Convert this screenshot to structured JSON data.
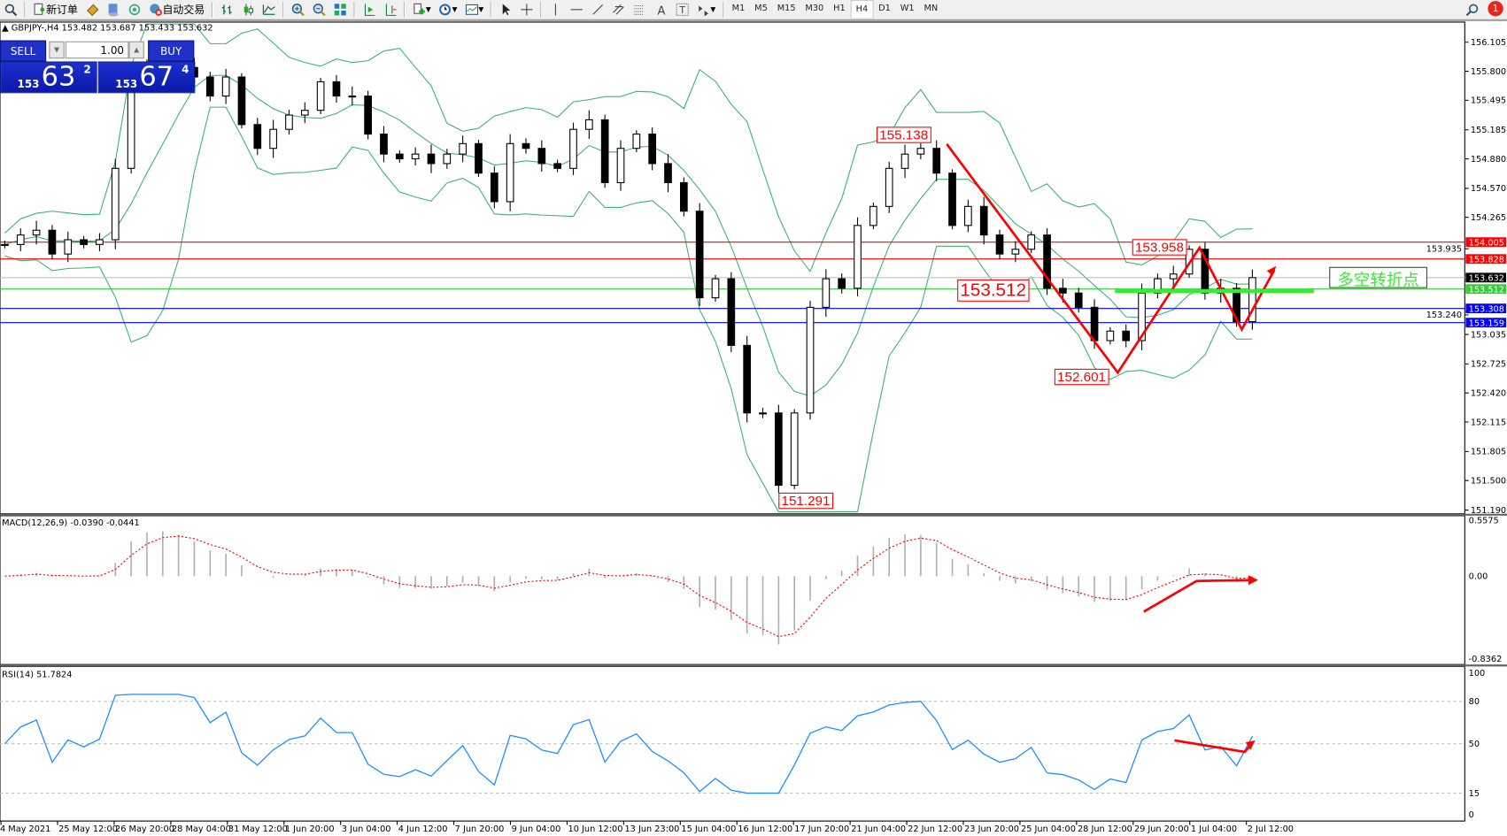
{
  "toolbar": {
    "new_order": "新订单",
    "auto_trading": "自动交易",
    "timeframes": [
      "M1",
      "M5",
      "M15",
      "M30",
      "H1",
      "H4",
      "D1",
      "W1",
      "MN"
    ],
    "active_timeframe": "H4",
    "notification_count": "1"
  },
  "chart": {
    "info": "GBPJPY-,H4  153.482 153.687 153.433 153.632"
  },
  "trade_panel": {
    "sell_label": "SELL",
    "buy_label": "BUY",
    "lot": "1.00",
    "sell_price": {
      "prefix": "153",
      "main": "63",
      "sup": "2"
    },
    "buy_price": {
      "prefix": "153",
      "main": "67",
      "sup": "4"
    }
  },
  "price_axis": {
    "ticks": [
      "156.105",
      "155.800",
      "155.495",
      "155.185",
      "154.880",
      "154.570",
      "154.265",
      "153.935",
      "153.240",
      "153.035",
      "152.725",
      "152.420",
      "152.115",
      "151.805",
      "151.500",
      "151.190"
    ]
  },
  "levels": [
    {
      "price": "154.005",
      "line": "#ff0000",
      "bg": "#ff0000",
      "fg": "#ffffff"
    },
    {
      "price": "153.828",
      "line": "#ff0000",
      "bg": "#ff0000",
      "fg": "#ffffff"
    },
    {
      "price": "153.632",
      "line": "#c0c0c0",
      "bg": "#000000",
      "fg": "#ffffff"
    },
    {
      "price": "153.512",
      "line": "#33cc33",
      "bg": "#33cc33",
      "fg": "#ffffff"
    },
    {
      "price": "153.308",
      "line": "#0000ff",
      "bg": "#0000ff",
      "fg": "#ffffff"
    },
    {
      "price": "153.159",
      "line": "#0000ff",
      "bg": "#0000ff",
      "fg": "#ffffff"
    }
  ],
  "annotations": {
    "labels": [
      "155.138",
      "153.512",
      "153.958",
      "152.601",
      "151.291"
    ],
    "turning_point_text": "多空转折点"
  },
  "macd": {
    "label": "MACD(12,26,9) -0.0390 -0.0441",
    "ticks": [
      "0.5575",
      "0.00",
      "-0.8362"
    ]
  },
  "rsi": {
    "label": "RSI(14) 51.7824",
    "ticks": [
      "100",
      "80",
      "50",
      "15",
      "0"
    ],
    "levels": [
      80,
      50,
      15
    ]
  },
  "time_axis": [
    "4 May 2021",
    "25 May 12:00",
    "26 May 20:00",
    "28 May 04:00",
    "31 May 12:00",
    "1 Jun 20:00",
    "3 Jun 04:00",
    "4 Jun 12:00",
    "7 Jun 20:00",
    "9 Jun 04:00",
    "10 Jun 12:00",
    "13 Jun 23:00",
    "15 Jun 04:00",
    "16 Jun 12:00",
    "17 Jun 20:00",
    "21 Jun 04:00",
    "22 Jun 12:00",
    "23 Jun 20:00",
    "25 Jun 04:00",
    "28 Jun 12:00",
    "29 Jun 20:00",
    "1 Jul 04:00",
    "2 Jul 12:00"
  ],
  "chart_data": {
    "type": "candlestick",
    "symbol": "GBPJPY-",
    "timeframe": "H4",
    "ylim": [
      151.19,
      156.105
    ],
    "closes": [
      153.98,
      154.08,
      154.13,
      153.88,
      154.03,
      153.98,
      154.03,
      154.78,
      155.74,
      155.84,
      155.84,
      155.84,
      155.74,
      155.54,
      155.74,
      155.24,
      154.99,
      155.19,
      155.34,
      155.39,
      155.69,
      155.54,
      155.54,
      155.14,
      154.93,
      154.88,
      154.93,
      154.83,
      154.93,
      155.04,
      154.73,
      154.43,
      155.04,
      154.99,
      154.83,
      154.78,
      155.19,
      155.29,
      154.63,
      154.99,
      155.14,
      154.83,
      154.63,
      154.33,
      153.42,
      153.62,
      152.92,
      152.21,
      152.21,
      151.45,
      152.21,
      153.32,
      153.62,
      153.52,
      154.18,
      154.38,
      154.78,
      154.93,
      154.99,
      154.73,
      154.18,
      154.38,
      154.08,
      153.88,
      153.93,
      154.08,
      153.52,
      153.47,
      153.32,
      152.97,
      153.07,
      152.97,
      153.47,
      153.62,
      153.67,
      153.93,
      153.47,
      153.52,
      153.17,
      153.632
    ],
    "colors": {
      "bands": "#3cb371",
      "macd_hist": "#b0b0b0",
      "macd_signal": "#ff0000",
      "rsi": "#1e90ff",
      "annotation": "#ff0000",
      "turning_line": "#33ee33"
    }
  }
}
